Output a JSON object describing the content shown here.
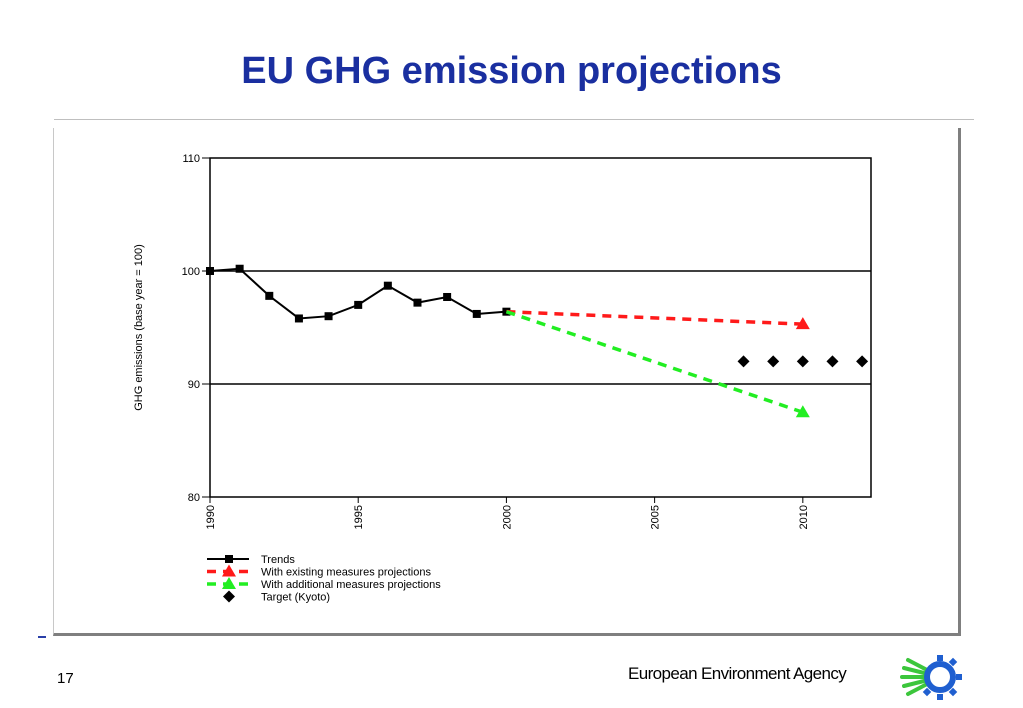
{
  "slide": {
    "title": "EU GHG emission projections",
    "page_number": "17",
    "agency": "European Environment  Agency"
  },
  "colors": {
    "title": "#1a2fa0",
    "trends": "#000000",
    "existing": "#ff1a1a",
    "additional": "#22ee22",
    "target": "#000000"
  },
  "icons": {
    "logo": "eea-logo-icon"
  },
  "chart_data": {
    "type": "line",
    "title": "",
    "xlabel": "",
    "ylabel": "GHG emissions (base year = 100)",
    "xlim": [
      1990,
      2012.3
    ],
    "ylim": [
      80,
      110
    ],
    "xticks": [
      "1990",
      "1995",
      "2000",
      "2005",
      "2010"
    ],
    "yticks": [
      "80",
      "90",
      "100",
      "110"
    ],
    "gridlines_y": [
      90,
      100
    ],
    "legend_position": "bottom-left",
    "series": [
      {
        "name": "Trends",
        "key": "trends",
        "style": "solid",
        "marker": "square",
        "x": [
          1990,
          1991,
          1992,
          1993,
          1994,
          1995,
          1996,
          1997,
          1998,
          1999,
          2000
        ],
        "y": [
          100.0,
          100.2,
          97.8,
          95.8,
          96.0,
          97.0,
          98.7,
          97.2,
          97.7,
          96.2,
          96.4
        ]
      },
      {
        "name": "With existing measures projections",
        "key": "existing",
        "style": "dashed",
        "marker": "triangle",
        "x": [
          2000,
          2010
        ],
        "y": [
          96.4,
          95.3
        ]
      },
      {
        "name": "With additional measures projections",
        "key": "additional",
        "style": "dashed",
        "marker": "triangle",
        "x": [
          2000,
          2010
        ],
        "y": [
          96.4,
          87.5
        ]
      },
      {
        "name": "Target (Kyoto)",
        "key": "target",
        "style": "none",
        "marker": "diamond",
        "x": [
          2008,
          2009,
          2010,
          2011,
          2012
        ],
        "y": [
          92.0,
          92.0,
          92.0,
          92.0,
          92.0
        ]
      }
    ],
    "legend": [
      "Trends",
      "With existing measures projections",
      "With additional measures projections",
      "Target (Kyoto)"
    ]
  }
}
